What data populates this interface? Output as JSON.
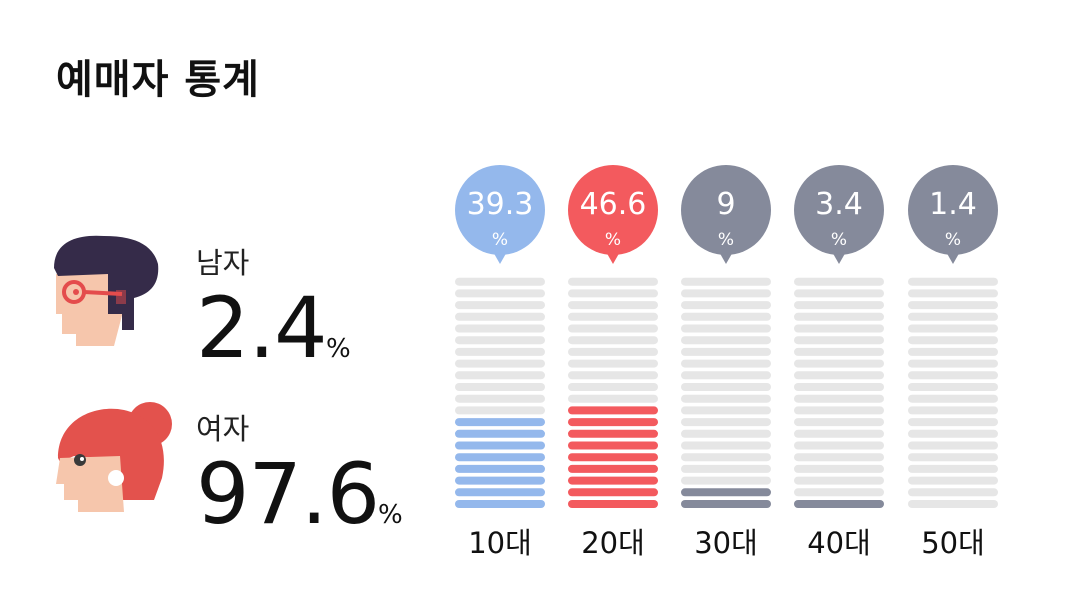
{
  "title": "예매자 통계",
  "gender": {
    "male": {
      "label": "남자",
      "value": "2.4",
      "unit": "%"
    },
    "female": {
      "label": "여자",
      "value": "97.6",
      "unit": "%"
    }
  },
  "chart_data": {
    "type": "bar",
    "categories": [
      "10대",
      "20대",
      "30대",
      "40대",
      "50대"
    ],
    "values": [
      39.3,
      46.6,
      9,
      3.4,
      1.4
    ],
    "value_labels": [
      "39.3",
      "46.6",
      "9",
      "3.4",
      "1.4"
    ],
    "unit": "%",
    "segments_per_bar": 20,
    "filled_segments": [
      8,
      9,
      2,
      1,
      0
    ],
    "colors": [
      "#94b8ec",
      "#f35a5e",
      "#858a9b",
      "#858a9b",
      "#858a9b"
    ],
    "empty_segment_color": "#e6e6e6",
    "title": "",
    "xlabel": "",
    "ylabel": "",
    "grid": false,
    "legend": "none"
  }
}
